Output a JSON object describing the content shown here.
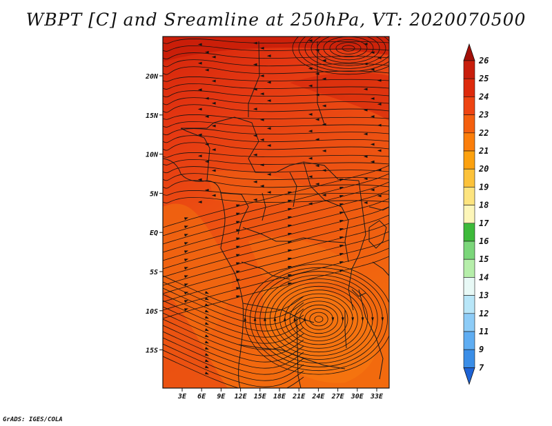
{
  "title": "WBPT [C] and Sreamline at 250hPa, VT: 2020070500",
  "credit": "GrADS: IGES/COLA",
  "map": {
    "lat_ticks": [
      "20N",
      "15N",
      "10N",
      "5N",
      "EQ",
      "5S",
      "10S",
      "15S"
    ],
    "lon_ticks": [
      "3E",
      "6E",
      "9E",
      "12E",
      "15E",
      "18E",
      "21E",
      "24E",
      "27E",
      "30E",
      "33E"
    ],
    "streamline_color": "#111111"
  },
  "colorbar": {
    "labels": [
      "26",
      "25",
      "24",
      "23",
      "22",
      "21",
      "20",
      "19",
      "18",
      "17",
      "16",
      "15",
      "14",
      "13",
      "12",
      "11",
      "9",
      "7"
    ],
    "colors": [
      "#c81e0c",
      "#dd2a0c",
      "#ee4412",
      "#f45f0e",
      "#fb7e0a",
      "#fca10e",
      "#fcc23a",
      "#fde47f",
      "#fdf6b9",
      "#3dba3a",
      "#7bd67a",
      "#b6eeaa",
      "#e8f9f6",
      "#b8e6f8",
      "#8dccf7",
      "#5fadf2",
      "#3a8ee7",
      "#1e6cd9"
    ],
    "top_arrow_color": "#a31008",
    "bottom_arrow_color": "#1e63d5"
  }
}
